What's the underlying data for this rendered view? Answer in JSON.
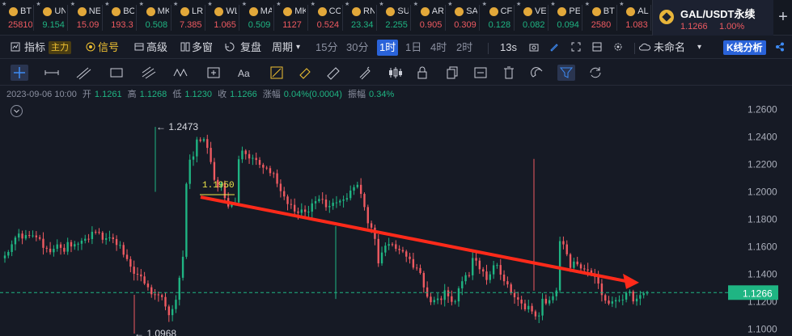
{
  "ticker_strip": [
    {
      "symbol": "BTC",
      "price": "25810",
      "dir": "down"
    },
    {
      "symbol": "UNI",
      "price": "9.154",
      "dir": "up"
    },
    {
      "symbol": "NEO",
      "price": "15.09",
      "dir": "down"
    },
    {
      "symbol": "BCH",
      "price": "193.3",
      "dir": "down"
    },
    {
      "symbol": "MKR",
      "price": "0.508",
      "dir": "up"
    },
    {
      "symbol": "LRC",
      "price": "7.385",
      "dir": "down"
    },
    {
      "symbol": "WLD",
      "price": "1.065",
      "dir": "down"
    },
    {
      "symbol": "MAT",
      "price": "0.509",
      "dir": "up"
    },
    {
      "symbol": "MKR",
      "price": "1127",
      "dir": "down"
    },
    {
      "symbol": "COM",
      "price": "0.524",
      "dir": "down"
    },
    {
      "symbol": "RNR",
      "price": "23.34",
      "dir": "up"
    },
    {
      "symbol": "SUI",
      "price": "2.255",
      "dir": "up"
    },
    {
      "symbol": "ARB",
      "price": "0.905",
      "dir": "down"
    },
    {
      "symbol": "SAN",
      "price": "0.309",
      "dir": "down"
    },
    {
      "symbol": "CFX",
      "price": "0.128",
      "dir": "up"
    },
    {
      "symbol": "VET",
      "price": "0.082",
      "dir": "up"
    },
    {
      "symbol": "PEP",
      "price": "0.094",
      "dir": "up"
    },
    {
      "symbol": "BTC",
      "price": "2580",
      "dir": "down"
    },
    {
      "symbol": "ALG",
      "price": "1.083",
      "dir": "down"
    }
  ],
  "active_ticker": {
    "title": "GAL/USDT永续",
    "price": "1.1266",
    "change": "1.00%"
  },
  "toolbar": {
    "indicator": "指标",
    "main_badge": "主力",
    "signal": "信号",
    "advanced": "高级",
    "multi_window": "多窗",
    "replay": "复盘",
    "period": "周期",
    "intervals": [
      "15分",
      "30分",
      "1时",
      "1日",
      "4时",
      "2时"
    ],
    "active_interval": "1时",
    "refresh": "13s",
    "layout_name": "未命名",
    "kline_analysis": "K线分析"
  },
  "info_bar": {
    "datetime": "2023-09-06 10:00",
    "open_label": "开",
    "open": "1.1261",
    "high_label": "高",
    "high": "1.1268",
    "low_label": "低",
    "low": "1.1230",
    "close_label": "收",
    "close": "1.1266",
    "change_label": "涨幅",
    "change": "0.04%(0.0004)",
    "amp_label": "振幅",
    "amp": "0.34%"
  },
  "chart_data": {
    "type": "candlestick",
    "ylim": [
      1.095,
      1.265
    ],
    "y_ticks": [
      "1.2600",
      "1.2400",
      "1.2200",
      "1.2000",
      "1.1800",
      "1.1600",
      "1.1400",
      "1.1200",
      "1.1000"
    ],
    "y_tick_values": [
      1.26,
      1.24,
      1.22,
      1.2,
      1.18,
      1.16,
      1.14,
      1.12,
      1.1
    ],
    "annotations": {
      "high": "1.2473",
      "low": "1.0968",
      "marker": "1.1950"
    },
    "annotation_values": {
      "high": 1.2473,
      "low": 1.0968,
      "marker": 1.195
    },
    "current_price": "1.1266",
    "current_price_value": 1.1266,
    "trend_arrow": {
      "from": 1.195,
      "to": 1.128
    },
    "colors": {
      "up": "#1fb583",
      "down": "#ef5a61",
      "arrow": "#ff2a1a",
      "marker": "#f1e94a",
      "price_tag": "#1fb583"
    },
    "closes": [
      1.1536,
      1.1562,
      1.1618,
      1.1667,
      1.1696,
      1.166,
      1.1685,
      1.1682,
      1.1682,
      1.1669,
      1.1658,
      1.1592,
      1.1586,
      1.156,
      1.1585,
      1.1617,
      1.1592,
      1.1564,
      1.1634,
      1.1602,
      1.1619,
      1.1622,
      1.1644,
      1.1658,
      1.1656,
      1.1709,
      1.1708,
      1.1703,
      1.1651,
      1.1662,
      1.1668,
      1.1656,
      1.1613,
      1.1613,
      1.1542,
      1.151,
      1.1455,
      1.1403,
      1.1398,
      1.1384,
      1.1332,
      1.1305,
      1.1254,
      1.1253,
      1.1248,
      1.1234,
      1.1165,
      1.1102,
      1.1146,
      1.1214,
      1.1374,
      1.1527,
      1.2058,
      1.2234,
      1.2258,
      1.2381,
      1.2371,
      1.2384,
      1.232,
      1.2217,
      1.2087,
      1.2031,
      1.2063,
      1.1955,
      1.1893,
      1.1913,
      1.1923,
      1.2237,
      1.23,
      1.2275,
      1.2243,
      1.2247,
      1.2232,
      1.2197,
      1.2176,
      1.2172,
      1.2136,
      1.2135,
      1.2059,
      1.2005,
      1.1966,
      1.1911,
      1.1905,
      1.1857,
      1.1847,
      1.1871,
      1.1854,
      1.1856,
      1.1916,
      1.1932,
      1.1948,
      1.1944,
      1.1888,
      1.1897,
      1.1921,
      1.1923,
      1.1935,
      1.1944,
      1.1954,
      1.2009,
      1.2034,
      1.2051,
      1.1985,
      1.1889,
      1.1771,
      1.1739,
      1.1657,
      1.1479,
      1.1558,
      1.1608,
      1.1619,
      1.1618,
      1.1585,
      1.1576,
      1.1566,
      1.1528,
      1.151,
      1.1448,
      1.1445,
      1.1409,
      1.1304,
      1.1236,
      1.1196,
      1.1212,
      1.1223,
      1.1213,
      1.1283,
      1.1239,
      1.1199,
      1.1202,
      1.1297,
      1.1349,
      1.1393,
      1.1392,
      1.1518,
      1.1499,
      1.1436,
      1.142,
      1.1358,
      1.1399,
      1.1465,
      1.1467,
      1.1397,
      1.1349,
      1.1326,
      1.1264,
      1.1232,
      1.1215,
      1.1187,
      1.1144,
      1.1169,
      1.1129,
      1.1093,
      1.1099,
      1.1221,
      1.1187,
      1.1211,
      1.1239,
      1.1282,
      1.1641,
      1.1617,
      1.1545,
      1.1446,
      1.1492,
      1.1472,
      1.1442,
      1.1435,
      1.1428,
      1.1395,
      1.1381,
      1.1332,
      1.1248,
      1.1208,
      1.1186,
      1.1202,
      1.1211,
      1.1212,
      1.1215,
      1.1264,
      1.1274,
      1.1202,
      1.1222,
      1.1248,
      1.1261,
      1.1266
    ]
  }
}
